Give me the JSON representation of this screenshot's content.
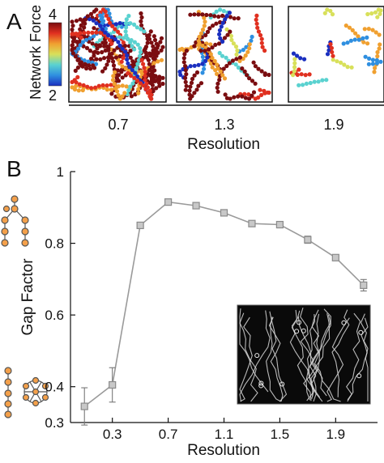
{
  "chart_data": [
    {
      "panel": "A",
      "type": "scatter",
      "colorbar": {
        "label": "Network Force",
        "ticks": [
          "2",
          "4"
        ],
        "colormap": "jet",
        "stops": [
          "#1a2fbf",
          "#2f8fe0",
          "#5ad2d0",
          "#d8e05a",
          "#f0a030",
          "#e03020",
          "#7a0d10"
        ]
      },
      "xlabel": "Resolution",
      "xticks": [
        "0.7",
        "1.3",
        "1.9"
      ],
      "subpanels": [
        {
          "resolution": "0.7",
          "density": "high"
        },
        {
          "resolution": "1.3",
          "density": "medium"
        },
        {
          "resolution": "1.9",
          "density": "low"
        }
      ]
    },
    {
      "panel": "B",
      "type": "line",
      "xlabel": "Resolution",
      "ylabel": "Gap Factor",
      "xlim": [
        0.0,
        2.2
      ],
      "ylim": [
        0.3,
        1.0
      ],
      "xticks": [
        "0.3",
        "0.7",
        "1.1",
        "1.5",
        "1.9"
      ],
      "yticks": [
        "0.4",
        "0.6",
        "0.8",
        "1"
      ],
      "line_color": "#9a9a9a",
      "x": [
        0.1,
        0.3,
        0.5,
        0.7,
        0.9,
        1.1,
        1.3,
        1.5,
        1.7,
        1.9,
        2.1
      ],
      "y": [
        0.345,
        0.405,
        0.85,
        0.915,
        0.905,
        0.885,
        0.855,
        0.852,
        0.81,
        0.76,
        0.683
      ],
      "err": [
        0.052,
        0.048,
        0.008,
        0.006,
        0.006,
        0.006,
        0.006,
        0.006,
        0.01,
        0.008,
        0.016
      ]
    }
  ],
  "panel_labels": {
    "a": "A",
    "b": "B"
  }
}
